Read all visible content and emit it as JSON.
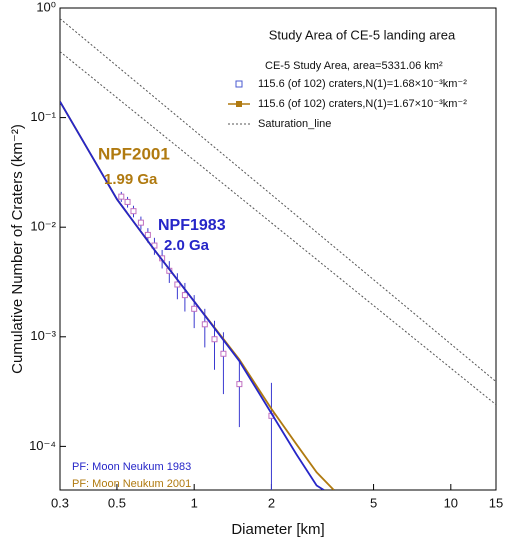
{
  "chart_data": {
    "type": "scatter",
    "title": "Study Area of CE-5 landing area",
    "xlabel": "Diameter [km]",
    "ylabel": "Cumulative Number of Craters (km⁻²)",
    "xscale": "log",
    "yscale": "log",
    "xlim": [
      0.3,
      15
    ],
    "ylim": [
      4e-05,
      1
    ],
    "xticks": [
      0.3,
      0.5,
      1,
      2,
      5,
      10,
      15
    ],
    "yticks": [
      {
        "value": 0.0001,
        "label": "10⁻⁴"
      },
      {
        "value": 0.001,
        "label": "10⁻³"
      },
      {
        "value": 0.01,
        "label": "10⁻²"
      },
      {
        "value": 0.1,
        "label": "10⁻¹"
      },
      {
        "value": 1,
        "label": "10⁰"
      }
    ],
    "legend_title": "CE-5 Study Area, area=5331.06 km²",
    "series": [
      {
        "name": "115.6 (of 102) craters,N(1)=1.68×10⁻³km⁻²",
        "color": "#4a5ad0",
        "marker": "hollow-square",
        "x": [
          0.52,
          0.55,
          0.58,
          0.62,
          0.66,
          0.7,
          0.75,
          0.8,
          0.86,
          0.92,
          1.0,
          1.1,
          1.2,
          1.3,
          1.5,
          2.0
        ],
        "values": [
          0.019,
          0.017,
          0.014,
          0.011,
          0.0085,
          0.0068,
          0.0052,
          0.004,
          0.003,
          0.0024,
          0.0018,
          0.0013,
          0.00095,
          0.0007,
          0.00037,
          0.00019
        ],
        "errors": [
          0.002,
          0.0019,
          0.0017,
          0.0015,
          0.0013,
          0.0012,
          0.001,
          0.0009,
          0.0008,
          0.0007,
          0.0006,
          0.0005,
          0.00045,
          0.0004,
          0.00022,
          0.00019
        ]
      },
      {
        "name": "115.6 (of 102) craters,N(1)=1.67×10⁻³km⁻²",
        "color": "#b07a10",
        "marker": "filled-square",
        "x": [
          0.3,
          0.5,
          0.7,
          1,
          1.5,
          2,
          2.5,
          3,
          3.5
        ],
        "values": [
          0.14,
          0.018,
          0.0062,
          0.0021,
          0.00062,
          0.00022,
          0.000105,
          5.8e-05,
          4e-05
        ]
      },
      {
        "color": "#2626c8",
        "x": [
          0.3,
          0.5,
          0.7,
          1,
          1.5,
          2,
          2.5,
          3,
          3.2
        ],
        "values": [
          0.14,
          0.018,
          0.0062,
          0.0021,
          0.0006,
          0.0002,
          8.5e-05,
          4.4e-05,
          4e-05
        ]
      },
      {
        "name": "Saturation_line",
        "color": "#555555",
        "dash": true,
        "x": [
          0.3,
          15
        ],
        "values": [
          0.8,
          0.00039
        ]
      },
      {
        "color": "#555555",
        "dash": true,
        "x": [
          0.3,
          15
        ],
        "values": [
          0.4,
          0.00024
        ]
      }
    ],
    "annotations": [
      {
        "text": "NPF2001",
        "color": "#b07a10"
      },
      {
        "text": "1.99 Ga",
        "color": "#b07a10"
      },
      {
        "text": "NPF1983",
        "color": "#2626c8"
      },
      {
        "text": "2.0 Ga",
        "color": "#2626c8"
      },
      {
        "text": "PF: Moon Neukum 1983",
        "color": "#2626c8"
      },
      {
        "text": "PF: Moon Neukum 2001",
        "color": "#b07a10"
      }
    ]
  }
}
